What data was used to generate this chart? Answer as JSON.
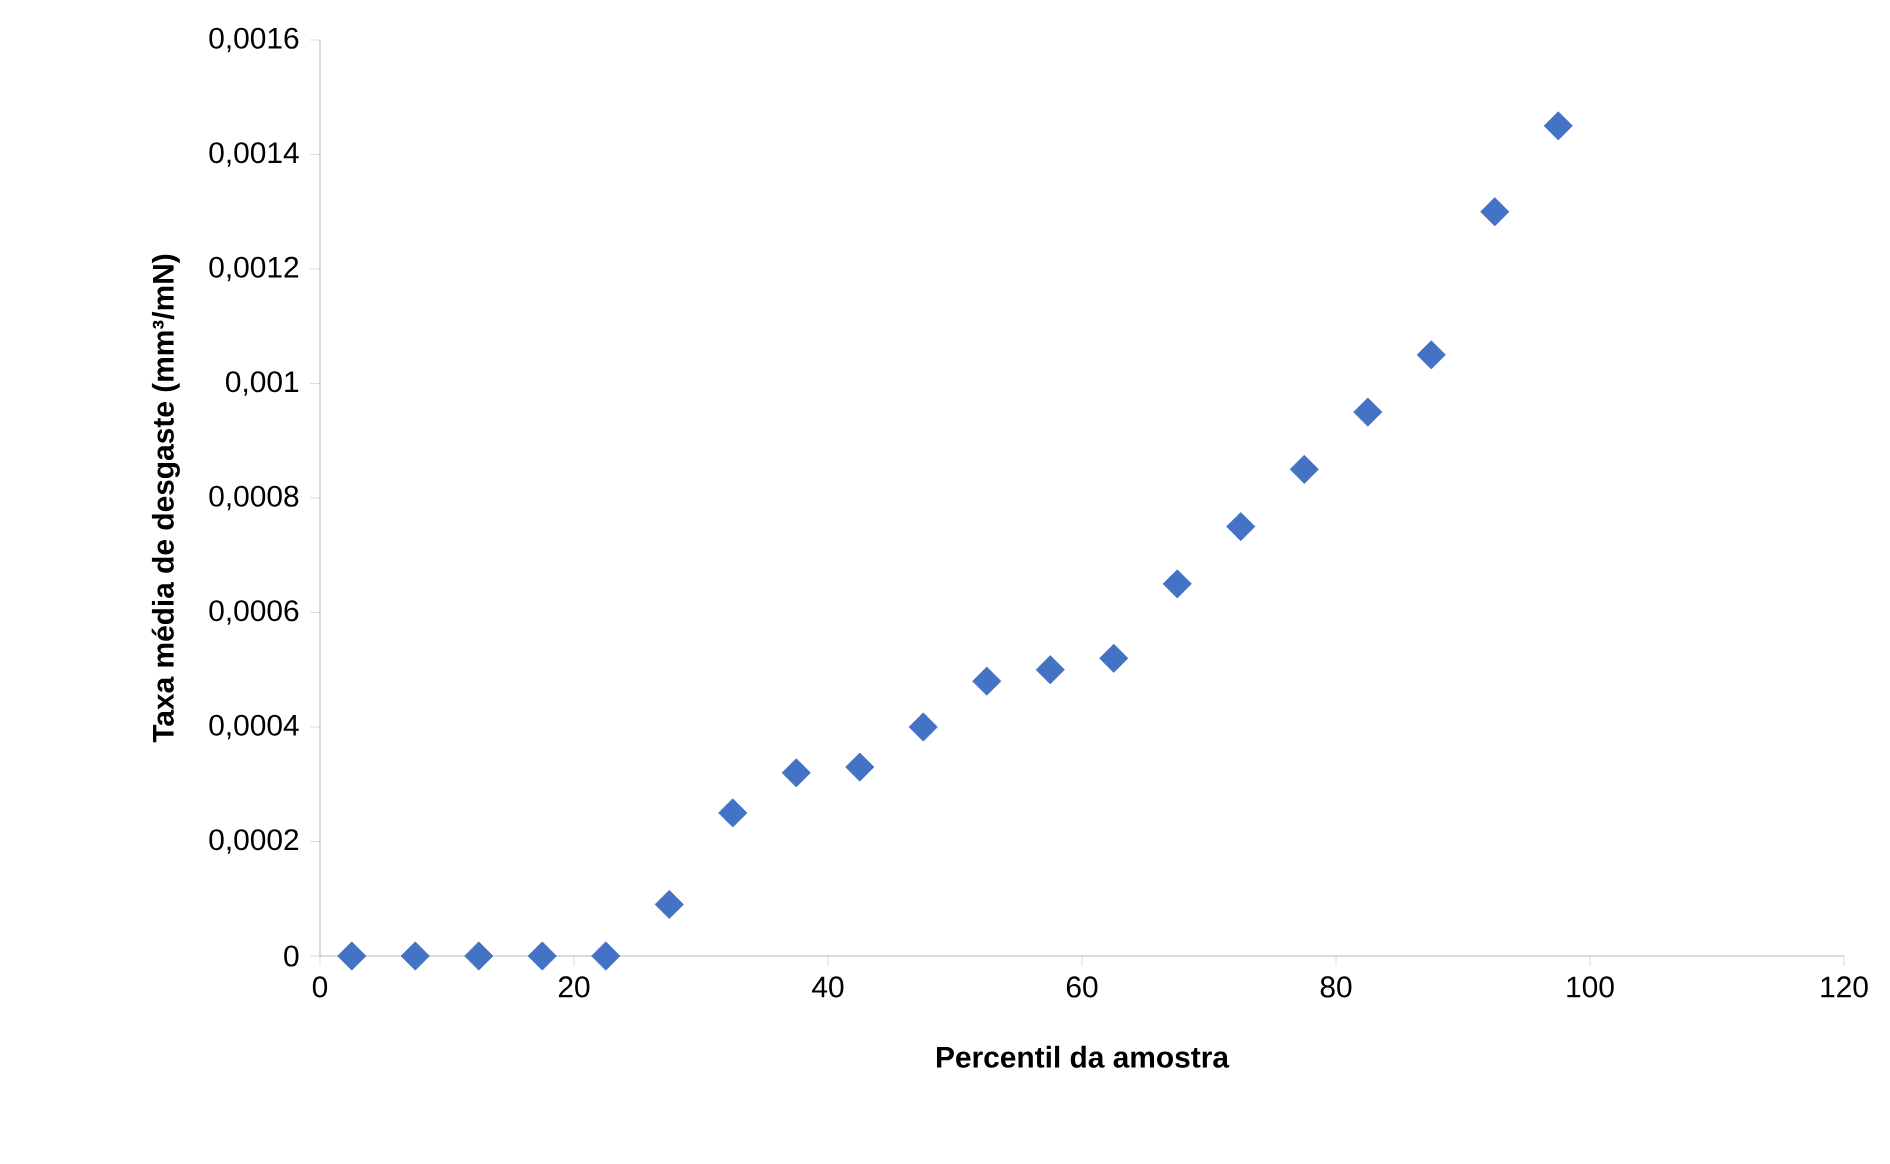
{
  "chart_data": {
    "type": "scatter",
    "xlabel": "Percentil da amostra",
    "ylabel": "Taxa média de desgaste (mm³/mN)",
    "x": [
      2.5,
      7.5,
      12.5,
      17.5,
      22.5,
      27.5,
      32.5,
      37.5,
      42.5,
      47.5,
      52.5,
      57.5,
      62.5,
      67.5,
      72.5,
      77.5,
      82.5,
      87.5,
      92.5,
      97.5
    ],
    "values": [
      0,
      0,
      0,
      0,
      0,
      9e-05,
      0.00025,
      0.00032,
      0.00033,
      0.0004,
      0.00048,
      0.0005,
      0.00052,
      0.00065,
      0.00075,
      0.00085,
      0.00095,
      0.00105,
      0.0013,
      0.00145
    ],
    "color": "#4472c4",
    "marker": "diamond",
    "xlim": [
      0,
      120
    ],
    "xticks": [
      0,
      20,
      40,
      60,
      80,
      100,
      120
    ],
    "ylim": [
      0,
      0.0016
    ],
    "yticks": [
      {
        "value": 0,
        "label": "0"
      },
      {
        "value": 0.0002,
        "label": "0,0002"
      },
      {
        "value": 0.0004,
        "label": "0,0004"
      },
      {
        "value": 0.0006,
        "label": "0,0006"
      },
      {
        "value": 0.0008,
        "label": "0,0008"
      },
      {
        "value": 0.001,
        "label": "0,001"
      },
      {
        "value": 0.0012,
        "label": "0,0012"
      },
      {
        "value": 0.0014,
        "label": "0,0014"
      },
      {
        "value": 0.0016,
        "label": "0,0016"
      }
    ],
    "grid": false
  }
}
